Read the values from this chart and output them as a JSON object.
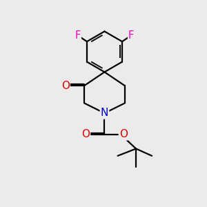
{
  "background_color": "#ebebeb",
  "bond_color": "#000000",
  "bond_width": 1.6,
  "atom_colors": {
    "F": "#ee00bb",
    "O": "#dd0000",
    "N": "#0000cc",
    "C": "#000000"
  },
  "font_size_atom": 10.5,
  "fig_width": 3.0,
  "fig_height": 3.0,
  "dpi": 100
}
